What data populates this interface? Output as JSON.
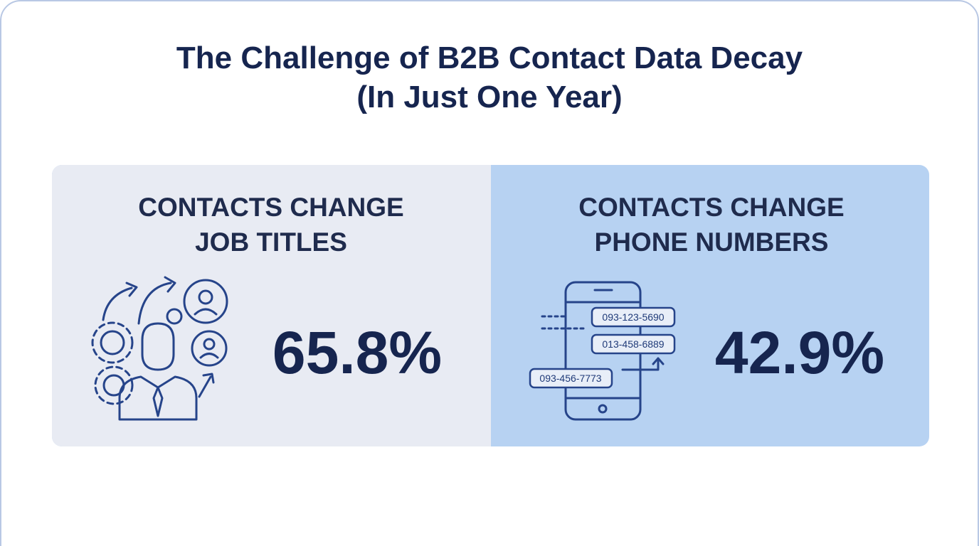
{
  "title": [
    "The Challenge of B2B Contact Data Decay",
    "(In Just One Year)"
  ],
  "panels": [
    {
      "heading": [
        "CONTACTS CHANGE",
        "JOB TITLES"
      ],
      "stat": "65.8%"
    },
    {
      "heading": [
        "CONTACTS CHANGE",
        "PHONE NUMBERS"
      ],
      "stat": "42.9%",
      "phone_numbers": [
        "093-123-5690",
        "013-458-6889",
        "093-456-7773"
      ]
    }
  ]
}
